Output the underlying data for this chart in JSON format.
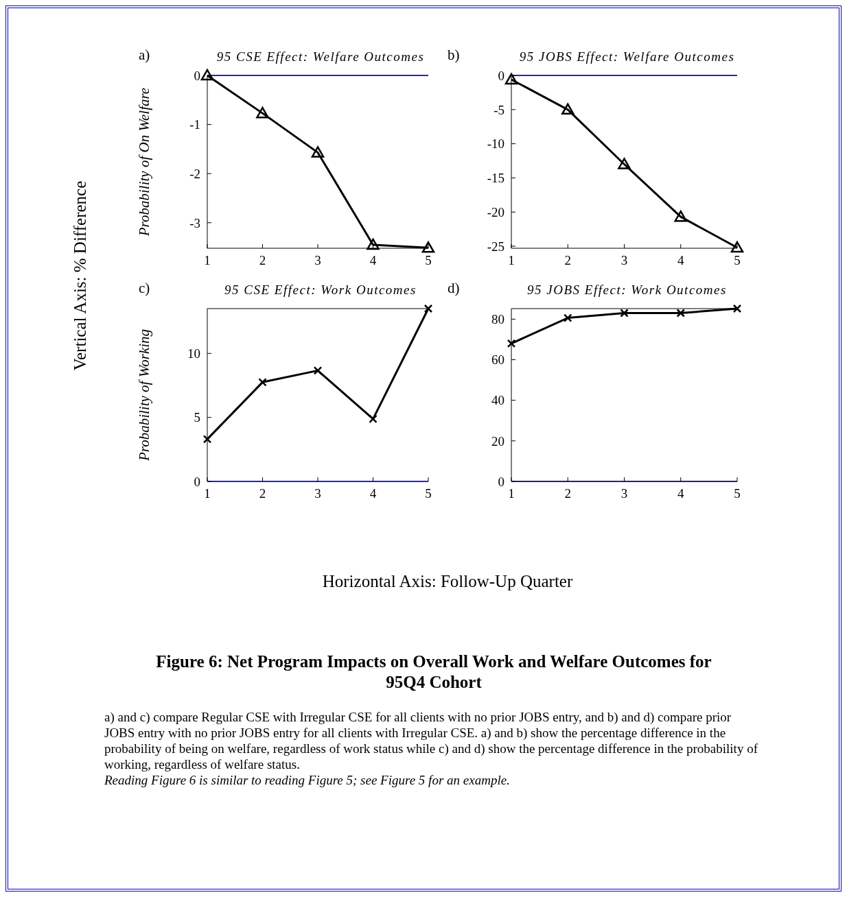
{
  "chart_data": [
    {
      "type": "line",
      "title": "95 CSE Effect: Welfare Outcomes",
      "ylabel": "Probability of On Welfare",
      "annotations": [
        "a)"
      ],
      "x": [
        1,
        2,
        3,
        4,
        5
      ],
      "values": [
        0,
        -0.77,
        -1.57,
        -3.45,
        -3.51
      ],
      "color": "#000000",
      "marker": "triangle",
      "xlim": [
        1,
        5
      ],
      "xticks": [
        1,
        2,
        3,
        4,
        5
      ],
      "ylim": [
        -3.52,
        0
      ],
      "yticks": [
        -3,
        -2,
        -1,
        0
      ],
      "ref_lines": [
        {
          "axis": "y",
          "value": 0,
          "color": "#0000ff"
        }
      ]
    },
    {
      "type": "line",
      "title": "95 JOBS Effect: Welfare Outcomes",
      "annotations": [
        "b)"
      ],
      "x": [
        1,
        2,
        3,
        4,
        5
      ],
      "values": [
        -0.6,
        -5.0,
        -13.0,
        -20.7,
        -25.2
      ],
      "color": "#000000",
      "marker": "triangle",
      "xlim": [
        1,
        5
      ],
      "xticks": [
        1,
        2,
        3,
        4,
        5
      ],
      "ylim": [
        -25.3,
        0
      ],
      "yticks": [
        -25,
        -20,
        -15,
        -10,
        -5,
        0
      ],
      "ref_lines": [
        {
          "axis": "y",
          "value": 0,
          "color": "#0000ff"
        }
      ]
    },
    {
      "type": "line",
      "title": "95 CSE Effect: Work Outcomes",
      "ylabel": "Probability of Working",
      "annotations": [
        "c)"
      ],
      "x": [
        1,
        2,
        3,
        4,
        5
      ],
      "values": [
        3.3,
        7.75,
        8.66,
        4.88,
        13.5
      ],
      "color": "#000000",
      "marker": "cross",
      "xlim": [
        1,
        5
      ],
      "xticks": [
        1,
        2,
        3,
        4,
        5
      ],
      "ylim": [
        0,
        13.5
      ],
      "yticks": [
        0,
        5,
        10
      ],
      "ref_lines": [
        {
          "axis": "y",
          "value": 0,
          "color": "#0000ff"
        }
      ]
    },
    {
      "type": "line",
      "title": "95 JOBS Effect: Work Outcomes",
      "annotations": [
        "d)"
      ],
      "x": [
        1,
        2,
        3,
        4,
        5
      ],
      "values": [
        68,
        80.6,
        83,
        83,
        85.2
      ],
      "color": "#000000",
      "marker": "cross",
      "xlim": [
        1,
        5
      ],
      "xticks": [
        1,
        2,
        3,
        4,
        5
      ],
      "ylim": [
        0,
        85.2
      ],
      "yticks": [
        0,
        20,
        40,
        60,
        80
      ],
      "ref_lines": [
        {
          "axis": "y",
          "value": 0,
          "color": "#00008b"
        }
      ]
    },
    {
      "type": "other",
      "title": "Figure 6: Net Program Impacts on Overall Work and Welfare Outcomes for 95Q4 Cohort",
      "xlabel": "Horizontal Axis: Follow-Up Quarter",
      "ylabel": "Vertical Axis: % Difference",
      "annotations": [
        "a) and c) compare Regular CSE with Irregular CSE for all clients with no prior JOBS entry, and b) and d) compare prior JOBS entry with no prior JOBS entry for all clients with Irregular CSE. a) and b) show the percentage difference in the probability of being on welfare, regardless of work status while c) and d) show the percentage difference in the probability of working, regardless of welfare status.",
        "Reading Figure 6 is similar to reading Figure 5; see Figure 5 for an example."
      ]
    }
  ]
}
